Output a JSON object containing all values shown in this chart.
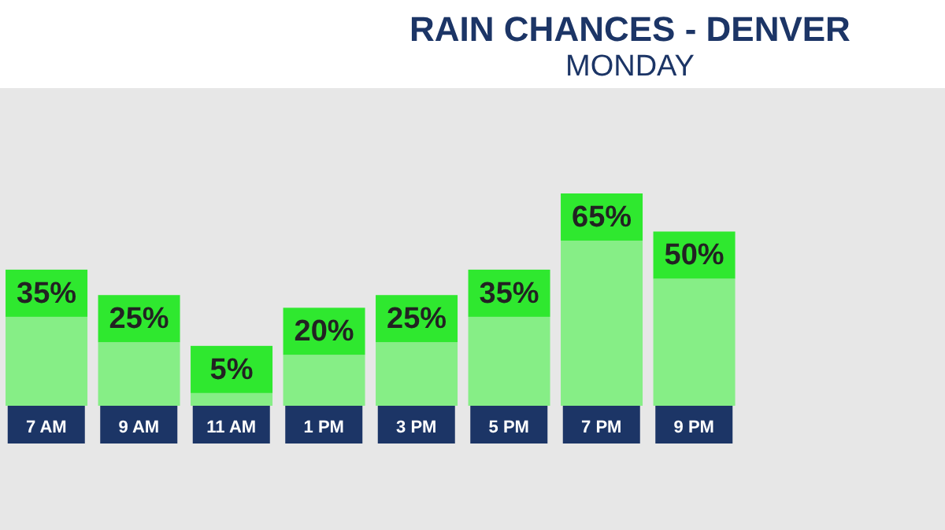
{
  "chart_data": {
    "type": "bar",
    "title": "RAIN CHANCES - DENVER",
    "subtitle": "MONDAY",
    "categories": [
      "7 AM",
      "9 AM",
      "11 AM",
      "1 PM",
      "3 PM",
      "5 PM",
      "7 PM",
      "9 PM"
    ],
    "values": [
      35,
      25,
      5,
      20,
      25,
      35,
      65,
      50
    ],
    "value_labels": [
      "35%",
      "25%",
      "5%",
      "20%",
      "25%",
      "35%",
      "65%",
      "50%"
    ],
    "color": "#86ee86",
    "tick_labels": "x",
    "grid": false,
    "legend": false
  }
}
